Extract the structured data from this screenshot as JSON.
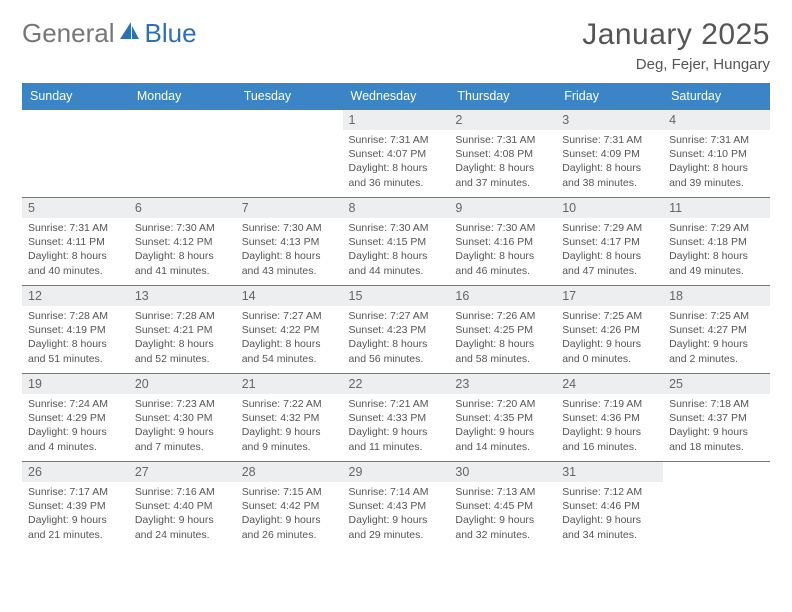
{
  "logo": {
    "text1": "General",
    "text2": "Blue"
  },
  "title": "January 2025",
  "subtitle": "Deg, Fejer, Hungary",
  "colors": {
    "header_bg": "#3b85c7",
    "row_border": "#3b85c7",
    "daynum_bg": "#eceeef",
    "text": "#555555",
    "logo_gray": "#777777",
    "logo_blue": "#2d6fb8",
    "page_bg": "#ffffff"
  },
  "weekdays": [
    "Sunday",
    "Monday",
    "Tuesday",
    "Wednesday",
    "Thursday",
    "Friday",
    "Saturday"
  ],
  "weeks": [
    [
      {
        "day": "",
        "lines": []
      },
      {
        "day": "",
        "lines": []
      },
      {
        "day": "",
        "lines": []
      },
      {
        "day": "1",
        "lines": [
          "Sunrise: 7:31 AM",
          "Sunset: 4:07 PM",
          "Daylight: 8 hours and 36 minutes."
        ]
      },
      {
        "day": "2",
        "lines": [
          "Sunrise: 7:31 AM",
          "Sunset: 4:08 PM",
          "Daylight: 8 hours and 37 minutes."
        ]
      },
      {
        "day": "3",
        "lines": [
          "Sunrise: 7:31 AM",
          "Sunset: 4:09 PM",
          "Daylight: 8 hours and 38 minutes."
        ]
      },
      {
        "day": "4",
        "lines": [
          "Sunrise: 7:31 AM",
          "Sunset: 4:10 PM",
          "Daylight: 8 hours and 39 minutes."
        ]
      }
    ],
    [
      {
        "day": "5",
        "lines": [
          "Sunrise: 7:31 AM",
          "Sunset: 4:11 PM",
          "Daylight: 8 hours and 40 minutes."
        ]
      },
      {
        "day": "6",
        "lines": [
          "Sunrise: 7:30 AM",
          "Sunset: 4:12 PM",
          "Daylight: 8 hours and 41 minutes."
        ]
      },
      {
        "day": "7",
        "lines": [
          "Sunrise: 7:30 AM",
          "Sunset: 4:13 PM",
          "Daylight: 8 hours and 43 minutes."
        ]
      },
      {
        "day": "8",
        "lines": [
          "Sunrise: 7:30 AM",
          "Sunset: 4:15 PM",
          "Daylight: 8 hours and 44 minutes."
        ]
      },
      {
        "day": "9",
        "lines": [
          "Sunrise: 7:30 AM",
          "Sunset: 4:16 PM",
          "Daylight: 8 hours and 46 minutes."
        ]
      },
      {
        "day": "10",
        "lines": [
          "Sunrise: 7:29 AM",
          "Sunset: 4:17 PM",
          "Daylight: 8 hours and 47 minutes."
        ]
      },
      {
        "day": "11",
        "lines": [
          "Sunrise: 7:29 AM",
          "Sunset: 4:18 PM",
          "Daylight: 8 hours and 49 minutes."
        ]
      }
    ],
    [
      {
        "day": "12",
        "lines": [
          "Sunrise: 7:28 AM",
          "Sunset: 4:19 PM",
          "Daylight: 8 hours and 51 minutes."
        ]
      },
      {
        "day": "13",
        "lines": [
          "Sunrise: 7:28 AM",
          "Sunset: 4:21 PM",
          "Daylight: 8 hours and 52 minutes."
        ]
      },
      {
        "day": "14",
        "lines": [
          "Sunrise: 7:27 AM",
          "Sunset: 4:22 PM",
          "Daylight: 8 hours and 54 minutes."
        ]
      },
      {
        "day": "15",
        "lines": [
          "Sunrise: 7:27 AM",
          "Sunset: 4:23 PM",
          "Daylight: 8 hours and 56 minutes."
        ]
      },
      {
        "day": "16",
        "lines": [
          "Sunrise: 7:26 AM",
          "Sunset: 4:25 PM",
          "Daylight: 8 hours and 58 minutes."
        ]
      },
      {
        "day": "17",
        "lines": [
          "Sunrise: 7:25 AM",
          "Sunset: 4:26 PM",
          "Daylight: 9 hours and 0 minutes."
        ]
      },
      {
        "day": "18",
        "lines": [
          "Sunrise: 7:25 AM",
          "Sunset: 4:27 PM",
          "Daylight: 9 hours and 2 minutes."
        ]
      }
    ],
    [
      {
        "day": "19",
        "lines": [
          "Sunrise: 7:24 AM",
          "Sunset: 4:29 PM",
          "Daylight: 9 hours and 4 minutes."
        ]
      },
      {
        "day": "20",
        "lines": [
          "Sunrise: 7:23 AM",
          "Sunset: 4:30 PM",
          "Daylight: 9 hours and 7 minutes."
        ]
      },
      {
        "day": "21",
        "lines": [
          "Sunrise: 7:22 AM",
          "Sunset: 4:32 PM",
          "Daylight: 9 hours and 9 minutes."
        ]
      },
      {
        "day": "22",
        "lines": [
          "Sunrise: 7:21 AM",
          "Sunset: 4:33 PM",
          "Daylight: 9 hours and 11 minutes."
        ]
      },
      {
        "day": "23",
        "lines": [
          "Sunrise: 7:20 AM",
          "Sunset: 4:35 PM",
          "Daylight: 9 hours and 14 minutes."
        ]
      },
      {
        "day": "24",
        "lines": [
          "Sunrise: 7:19 AM",
          "Sunset: 4:36 PM",
          "Daylight: 9 hours and 16 minutes."
        ]
      },
      {
        "day": "25",
        "lines": [
          "Sunrise: 7:18 AM",
          "Sunset: 4:37 PM",
          "Daylight: 9 hours and 18 minutes."
        ]
      }
    ],
    [
      {
        "day": "26",
        "lines": [
          "Sunrise: 7:17 AM",
          "Sunset: 4:39 PM",
          "Daylight: 9 hours and 21 minutes."
        ]
      },
      {
        "day": "27",
        "lines": [
          "Sunrise: 7:16 AM",
          "Sunset: 4:40 PM",
          "Daylight: 9 hours and 24 minutes."
        ]
      },
      {
        "day": "28",
        "lines": [
          "Sunrise: 7:15 AM",
          "Sunset: 4:42 PM",
          "Daylight: 9 hours and 26 minutes."
        ]
      },
      {
        "day": "29",
        "lines": [
          "Sunrise: 7:14 AM",
          "Sunset: 4:43 PM",
          "Daylight: 9 hours and 29 minutes."
        ]
      },
      {
        "day": "30",
        "lines": [
          "Sunrise: 7:13 AM",
          "Sunset: 4:45 PM",
          "Daylight: 9 hours and 32 minutes."
        ]
      },
      {
        "day": "31",
        "lines": [
          "Sunrise: 7:12 AM",
          "Sunset: 4:46 PM",
          "Daylight: 9 hours and 34 minutes."
        ]
      },
      {
        "day": "",
        "lines": []
      }
    ]
  ]
}
